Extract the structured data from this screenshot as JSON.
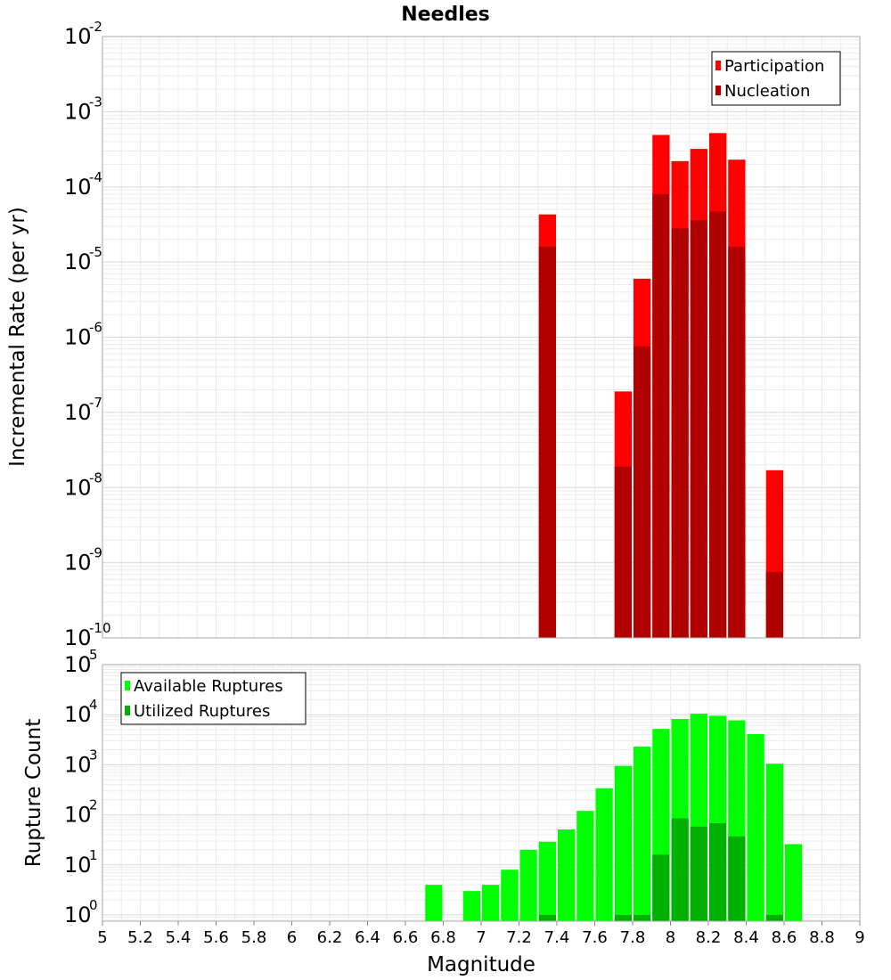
{
  "chart_data": [
    {
      "type": "bar",
      "title": "Needles",
      "ylabel": "Incremental Rate (per yr)",
      "xlabel": "",
      "xlim": [
        5,
        9
      ],
      "ylim": [
        1e-10,
        0.01
      ],
      "yscale": "log",
      "grid": true,
      "legend": "top-right",
      "bar_width": 0.1,
      "ytick_exponents": [
        -10,
        -9,
        -8,
        -7,
        -6,
        -5,
        -4,
        -3,
        -2
      ],
      "series": [
        {
          "name": "Participation",
          "color": "#ff0000",
          "x": [
            7.35,
            7.75,
            7.85,
            7.95,
            8.05,
            8.15,
            8.25,
            8.35,
            8.55
          ],
          "values": [
            4.3e-05,
            1.9e-07,
            6e-06,
            0.00049,
            0.00022,
            0.00032,
            0.00052,
            0.00023,
            1.7e-08
          ]
        },
        {
          "name": "Nucleation",
          "color": "#b00000",
          "x": [
            7.35,
            7.75,
            7.85,
            7.95,
            8.05,
            8.15,
            8.25,
            8.35,
            8.55
          ],
          "values": [
            1.6e-05,
            1.9e-08,
            7.5e-07,
            8e-05,
            2.8e-05,
            3.6e-05,
            4.7e-05,
            1.6e-05,
            7.5e-10
          ]
        }
      ]
    },
    {
      "type": "bar",
      "title": "",
      "ylabel": "Rupture Count",
      "xlabel": "Magnitude",
      "xlim": [
        5,
        9
      ],
      "ylim": [
        0.75,
        100000
      ],
      "yscale": "log",
      "grid": true,
      "legend": "top-left",
      "bar_width": 0.1,
      "x_ticks": [
        "5",
        "5.2",
        "5.4",
        "5.6",
        "5.8",
        "6",
        "6.2",
        "6.4",
        "6.6",
        "6.8",
        "7",
        "7.2",
        "7.4",
        "7.6",
        "7.8",
        "8",
        "8.2",
        "8.4",
        "8.6",
        "8.8",
        "9"
      ],
      "ytick_exponents": [
        0,
        1,
        2,
        3,
        4,
        5
      ],
      "series": [
        {
          "name": "Available Ruptures",
          "color": "#00ff00",
          "x": [
            6.75,
            6.95,
            7.05,
            7.15,
            7.25,
            7.35,
            7.45,
            7.55,
            7.65,
            7.75,
            7.85,
            7.95,
            8.05,
            8.15,
            8.25,
            8.35,
            8.45,
            8.55,
            8.65
          ],
          "values": [
            4,
            3,
            4,
            8,
            20,
            29,
            51,
            120,
            340,
            950,
            2300,
            5200,
            8200,
            10500,
            9500,
            7700,
            4100,
            1050,
            26
          ]
        },
        {
          "name": "Utilized Ruptures",
          "color": "#00b000",
          "x": [
            7.35,
            7.75,
            7.85,
            7.95,
            8.05,
            8.15,
            8.25,
            8.35,
            8.55
          ],
          "values": [
            1,
            1,
            1,
            16,
            85,
            58,
            68,
            37,
            1
          ]
        }
      ]
    }
  ]
}
